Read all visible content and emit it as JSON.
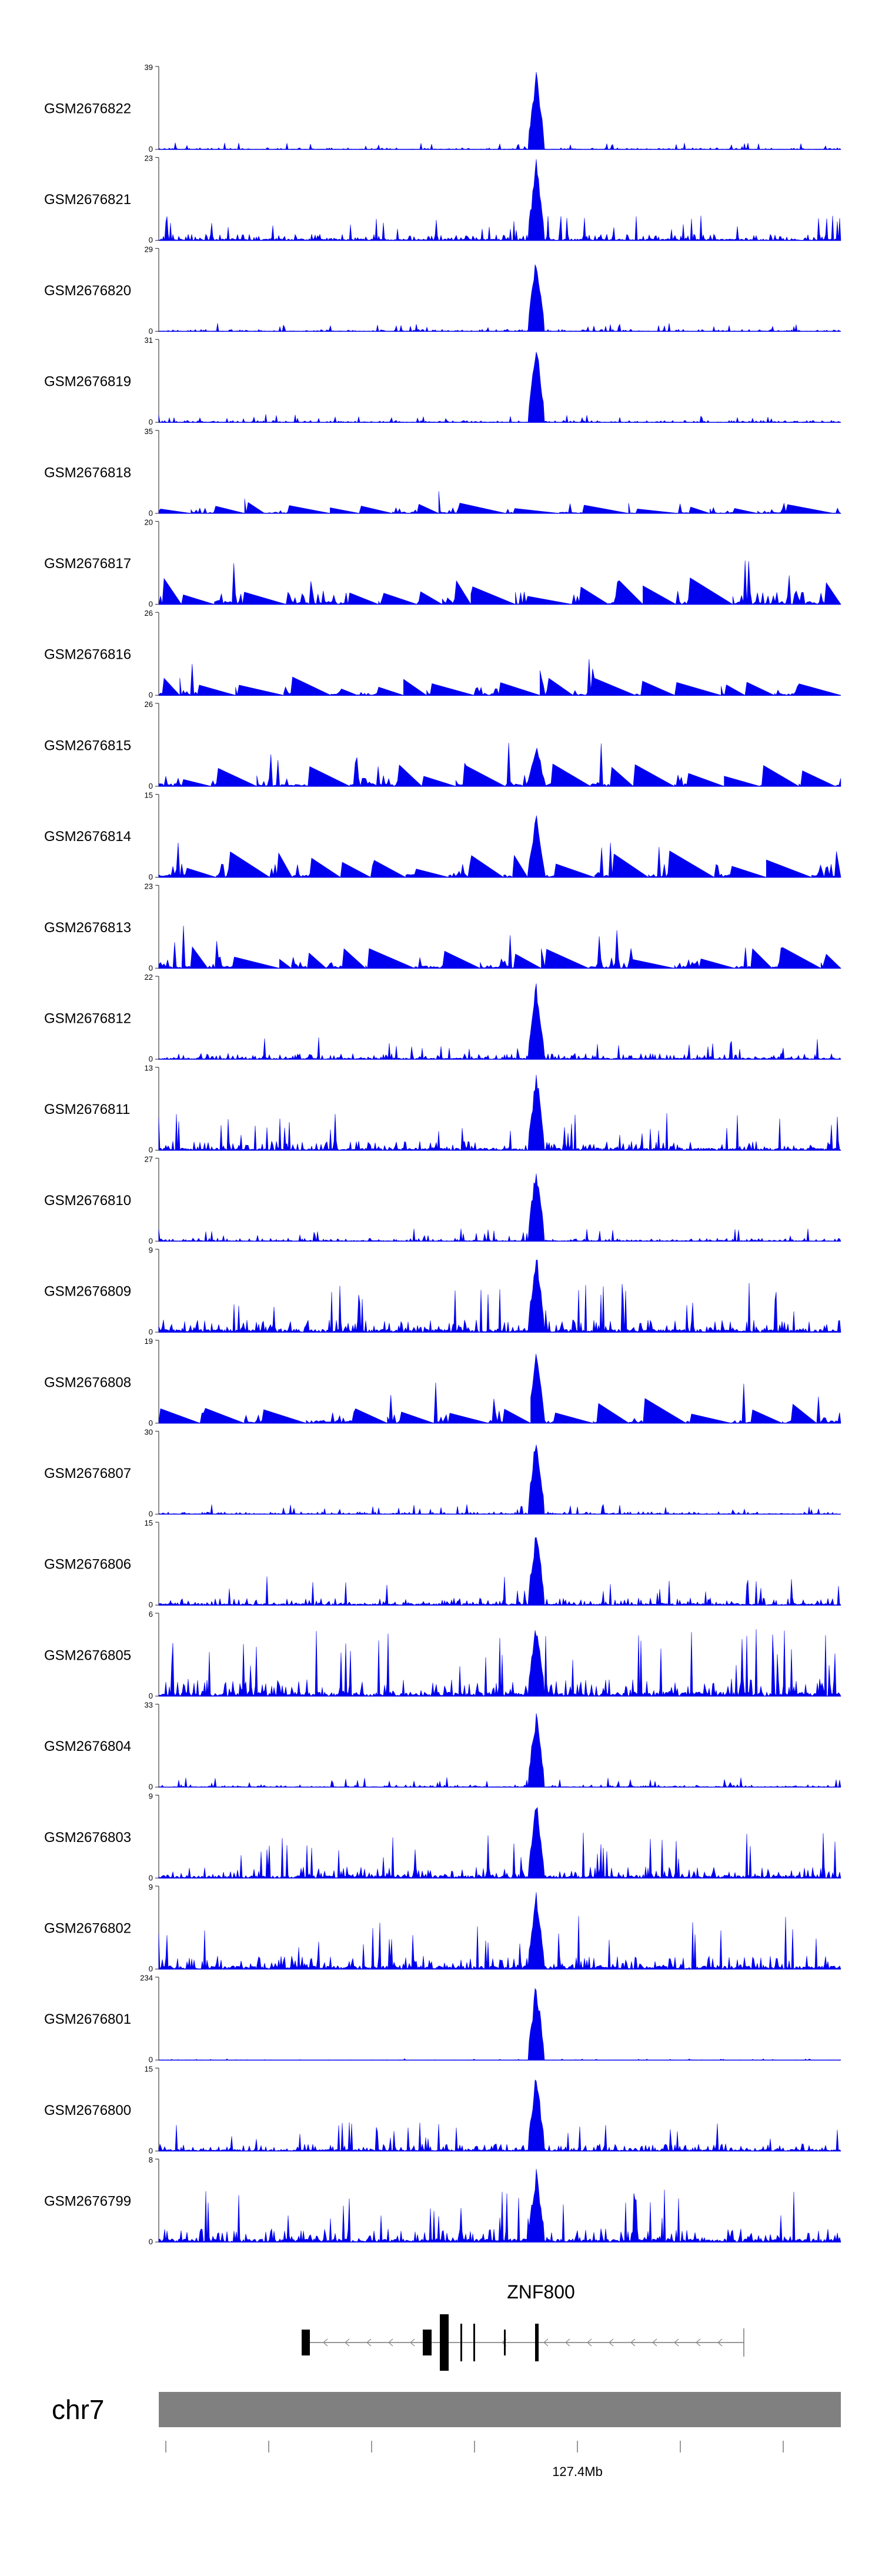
{
  "chart_data": {
    "type": "area",
    "title": "",
    "color": "#0000ee",
    "tracks": [
      {
        "name": "GSM2676822",
        "ymax": 39,
        "ymin": 0,
        "peak": 1.0,
        "noise": 0.08,
        "seed": 22,
        "sparse": false
      },
      {
        "name": "GSM2676821",
        "ymax": 23,
        "ymin": 0,
        "peak": 1.0,
        "noise": 0.3,
        "seed": 21,
        "sparse": false
      },
      {
        "name": "GSM2676820",
        "ymax": 29,
        "ymin": 0,
        "peak": 1.0,
        "noise": 0.1,
        "seed": 20,
        "sparse": false
      },
      {
        "name": "GSM2676819",
        "ymax": 31,
        "ymin": 0,
        "peak": 1.0,
        "noise": 0.1,
        "seed": 19,
        "sparse": false
      },
      {
        "name": "GSM2676818",
        "ymax": 35,
        "ymin": 0,
        "peak": 1.0,
        "noise": 0.28,
        "seed": 18,
        "sparse": true
      },
      {
        "name": "GSM2676817",
        "ymax": 20,
        "ymin": 0,
        "peak": 0.9,
        "noise": 0.65,
        "seed": 17,
        "sparse": true
      },
      {
        "name": "GSM2676816",
        "ymax": 26,
        "ymin": 0,
        "peak": 0.55,
        "noise": 0.45,
        "seed": 16,
        "sparse": true
      },
      {
        "name": "GSM2676815",
        "ymax": 26,
        "ymin": 0,
        "peak": 0.55,
        "noise": 0.55,
        "seed": 15,
        "sparse": true
      },
      {
        "name": "GSM2676814",
        "ymax": 15,
        "ymin": 0,
        "peak": 0.8,
        "noise": 0.65,
        "seed": 14,
        "sparse": true
      },
      {
        "name": "GSM2676813",
        "ymax": 23,
        "ymin": 0,
        "peak": 0.6,
        "noise": 0.55,
        "seed": 13,
        "sparse": true
      },
      {
        "name": "GSM2676812",
        "ymax": 22,
        "ymin": 0,
        "peak": 1.0,
        "noise": 0.28,
        "seed": 12,
        "sparse": false
      },
      {
        "name": "GSM2676811",
        "ymax": 13,
        "ymin": 0,
        "peak": 1.0,
        "noise": 0.45,
        "seed": 11,
        "sparse": false
      },
      {
        "name": "GSM2676810",
        "ymax": 27,
        "ymin": 0,
        "peak": 1.0,
        "noise": 0.15,
        "seed": 10,
        "sparse": false
      },
      {
        "name": "GSM2676809",
        "ymax": 9,
        "ymin": 0,
        "peak": 1.0,
        "noise": 0.6,
        "seed": 9,
        "sparse": false
      },
      {
        "name": "GSM2676808",
        "ymax": 19,
        "ymin": 0,
        "peak": 0.9,
        "noise": 0.6,
        "seed": 8,
        "sparse": true
      },
      {
        "name": "GSM2676807",
        "ymax": 30,
        "ymin": 0,
        "peak": 1.0,
        "noise": 0.12,
        "seed": 7,
        "sparse": false
      },
      {
        "name": "GSM2676806",
        "ymax": 15,
        "ymin": 0,
        "peak": 1.0,
        "noise": 0.35,
        "seed": 6,
        "sparse": false
      },
      {
        "name": "GSM2676805",
        "ymax": 6,
        "ymin": 0,
        "peak": 0.95,
        "noise": 0.85,
        "seed": 5,
        "sparse": false
      },
      {
        "name": "GSM2676804",
        "ymax": 33,
        "ymin": 0,
        "peak": 1.0,
        "noise": 0.12,
        "seed": 4,
        "sparse": false
      },
      {
        "name": "GSM2676803",
        "ymax": 9,
        "ymin": 0,
        "peak": 1.0,
        "noise": 0.55,
        "seed": 3,
        "sparse": false
      },
      {
        "name": "GSM2676802",
        "ymax": 9,
        "ymin": 0,
        "peak": 1.0,
        "noise": 0.65,
        "seed": 2,
        "sparse": false
      },
      {
        "name": "GSM2676801",
        "ymax": 234,
        "ymin": 0,
        "peak": 1.0,
        "noise": 0.02,
        "seed": 1,
        "sparse": false
      },
      {
        "name": "GSM2676800",
        "ymax": 15,
        "ymin": 0,
        "peak": 1.0,
        "noise": 0.35,
        "seed": 100,
        "sparse": false
      },
      {
        "name": "GSM2676799",
        "ymax": 8,
        "ymin": 0,
        "peak": 0.95,
        "noise": 0.65,
        "seed": 99,
        "sparse": false
      }
    ],
    "gene": {
      "name": "ZNF800",
      "strand": "-"
    },
    "chromosome": {
      "name": "chr7",
      "tick_label": "127.4Mb",
      "tick_count": 7,
      "labeled_tick_index": 4
    }
  }
}
